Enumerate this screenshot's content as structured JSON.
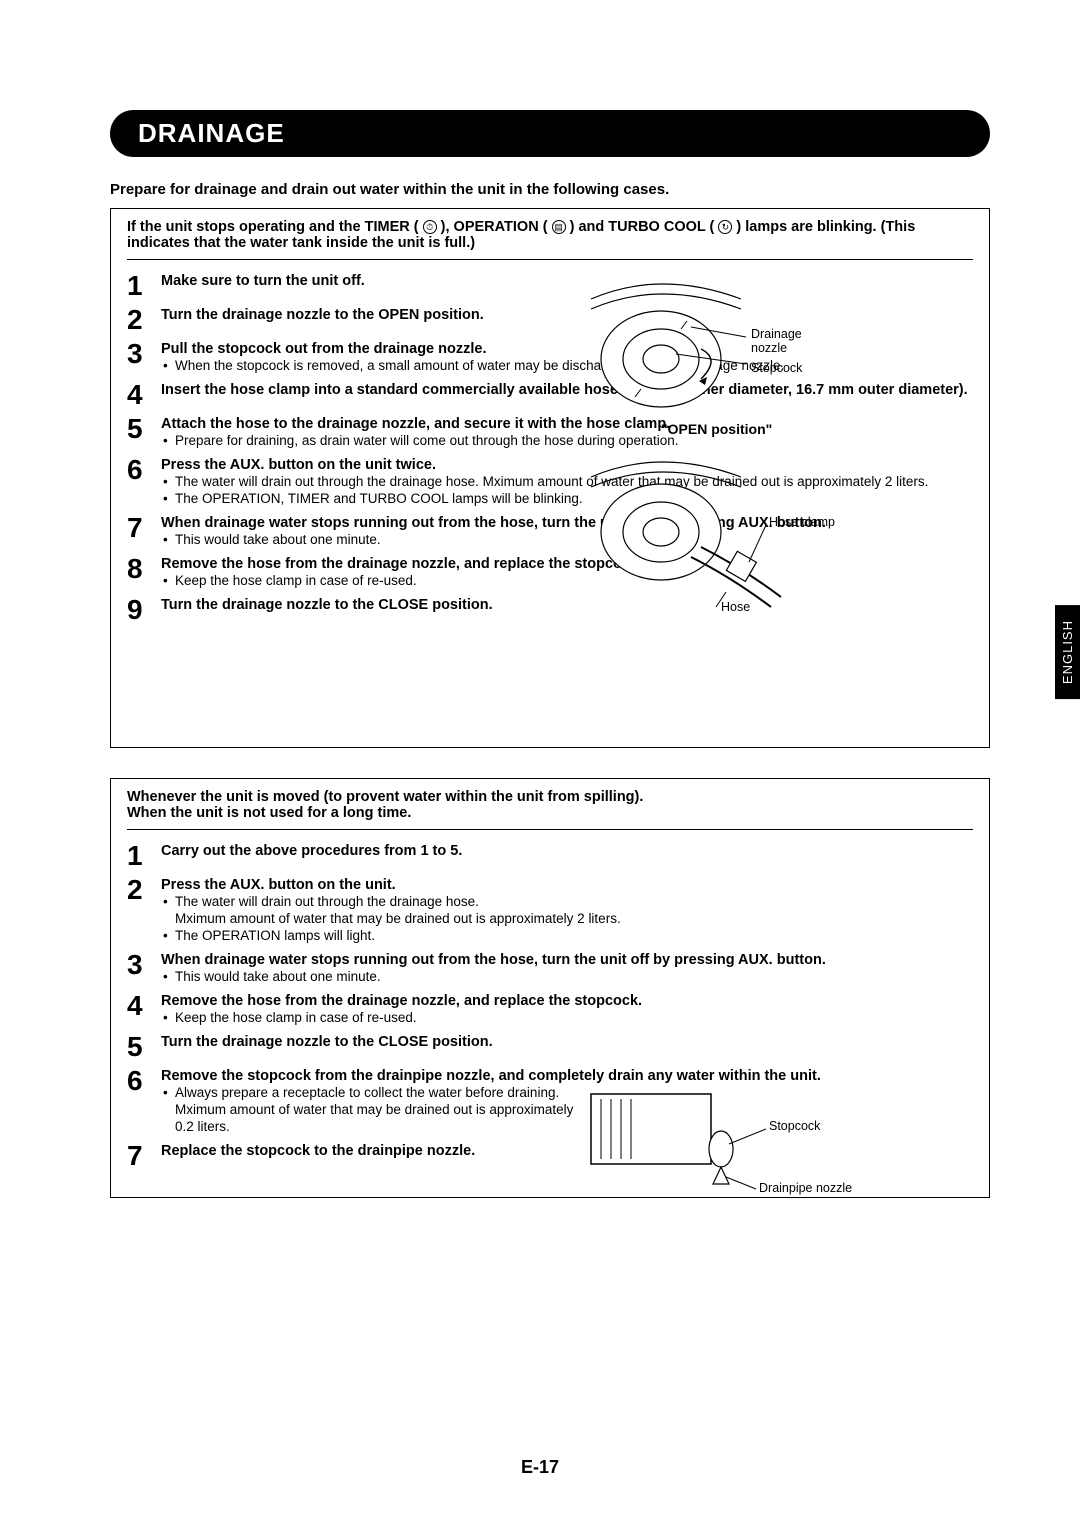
{
  "heading": "DRAINAGE",
  "intro": "Prepare for drainage and drain out water within the unit in the following cases.",
  "side_tab": "ENGLISH",
  "page_number": "E-17",
  "icons": {
    "timer": "⏱",
    "operation": "▤",
    "turbo": "↻"
  },
  "box1": {
    "intro_parts": [
      "If the unit stops operating and the TIMER ( ",
      " ), OPERATION ( ",
      " ) and TURBO COOL ( ",
      " ) lamps are blinking.  (This indicates that the water tank inside the unit is full.)"
    ],
    "steps": [
      {
        "n": "1",
        "title": "Make sure to turn the unit off.",
        "subs": [],
        "narrow": true
      },
      {
        "n": "2",
        "title": "Turn the drainage nozzle to the OPEN position.",
        "subs": [],
        "narrow": true,
        "justify": true
      },
      {
        "n": "3",
        "title": "Pull the stopcock out from the drainage nozzle.",
        "subs": [
          "When the stopcock is removed, a small amount of water may be discharged from the drainage nozzle."
        ],
        "narrow": true,
        "justify": true
      },
      {
        "n": "4",
        "title": "Insert the hose clamp into a standard commercially available hose (12.7 mm inner diameter, 16.7 mm outer diameter).",
        "subs": [],
        "narrow": true,
        "justify": true
      },
      {
        "n": "5",
        "title": "Attach the hose to the drainage nozzle, and secure it with the hose clamp.",
        "subs": [
          "Prepare for draining, as drain water will come out through the hose during operation."
        ],
        "narrow": true
      },
      {
        "n": "6",
        "title": "Press the AUX. button on the unit twice.",
        "subs": [
          "The water will drain out through the drainage hose. Mximum amount of water that may be drained out is approximately 2 liters.",
          "The OPERATION, TIMER and TURBO COOL lamps will be blinking."
        ],
        "narrow": true
      },
      {
        "n": "7",
        "title": "When drainage water stops running out from the hose, turn the unit off by pressing AUX. button.",
        "subs": [
          "This would take about one minute."
        ],
        "narrow": false
      },
      {
        "n": "8",
        "title": "Remove the hose from the drainage nozzle, and replace the stopcock.",
        "subs": [
          "Keep the hose clamp in case of re-used."
        ],
        "narrow": false
      },
      {
        "n": "9",
        "title": "Turn the drainage nozzle to the CLOSE position.",
        "subs": [],
        "narrow": false
      }
    ],
    "diagram1": {
      "labels": {
        "nozzle": "Drainage\nnozzle",
        "stopcock": "Stopcock"
      },
      "caption": "\"OPEN position\""
    },
    "diagram2": {
      "labels": {
        "hoseclamp": "Hose clamp",
        "hose": "Hose"
      }
    }
  },
  "box2": {
    "intro": "Whenever the unit is moved (to provent water within the unit from spilling).\nWhen the unit is not used for a long time.",
    "steps": [
      {
        "n": "1",
        "title": "Carry out the above procedures from 1 to 5.",
        "subs": [],
        "narrow": false
      },
      {
        "n": "2",
        "title": "Press the AUX. button on the unit.",
        "subs": [
          "The water will drain out through the drainage hose.\nMximum amount of water that may be drained out is approximately 2 liters.",
          "The OPERATION lamps will light."
        ],
        "narrow": false
      },
      {
        "n": "3",
        "title": "When drainage water stops running out from the hose, turn the unit off by pressing AUX. button.",
        "subs": [
          "This would take about one minute."
        ],
        "narrow": false
      },
      {
        "n": "4",
        "title": "Remove the hose from the drainage nozzle, and replace the stopcock.",
        "subs": [
          "Keep the hose clamp in case of re-used."
        ],
        "narrow": false
      },
      {
        "n": "5",
        "title": "Turn the drainage nozzle to the CLOSE position.",
        "subs": [],
        "narrow": false
      },
      {
        "n": "6",
        "title": "Remove the stopcock from the drainpipe nozzle, and completely drain any water within the unit.",
        "subs": [
          "Always prepare a receptacle to collect the water before draining. Mximum amount of water that may be drained out is approximately 0.2 liters."
        ],
        "narrow": false,
        "subnarrow": true
      },
      {
        "n": "7",
        "title": "Replace the stopcock to the drainpipe nozzle.",
        "subs": [],
        "narrow": false
      }
    ],
    "diagram": {
      "labels": {
        "stopcock": "Stopcock",
        "drainpipe": "Drainpipe nozzle"
      }
    }
  },
  "colors": {
    "black": "#000000",
    "white": "#ffffff"
  }
}
